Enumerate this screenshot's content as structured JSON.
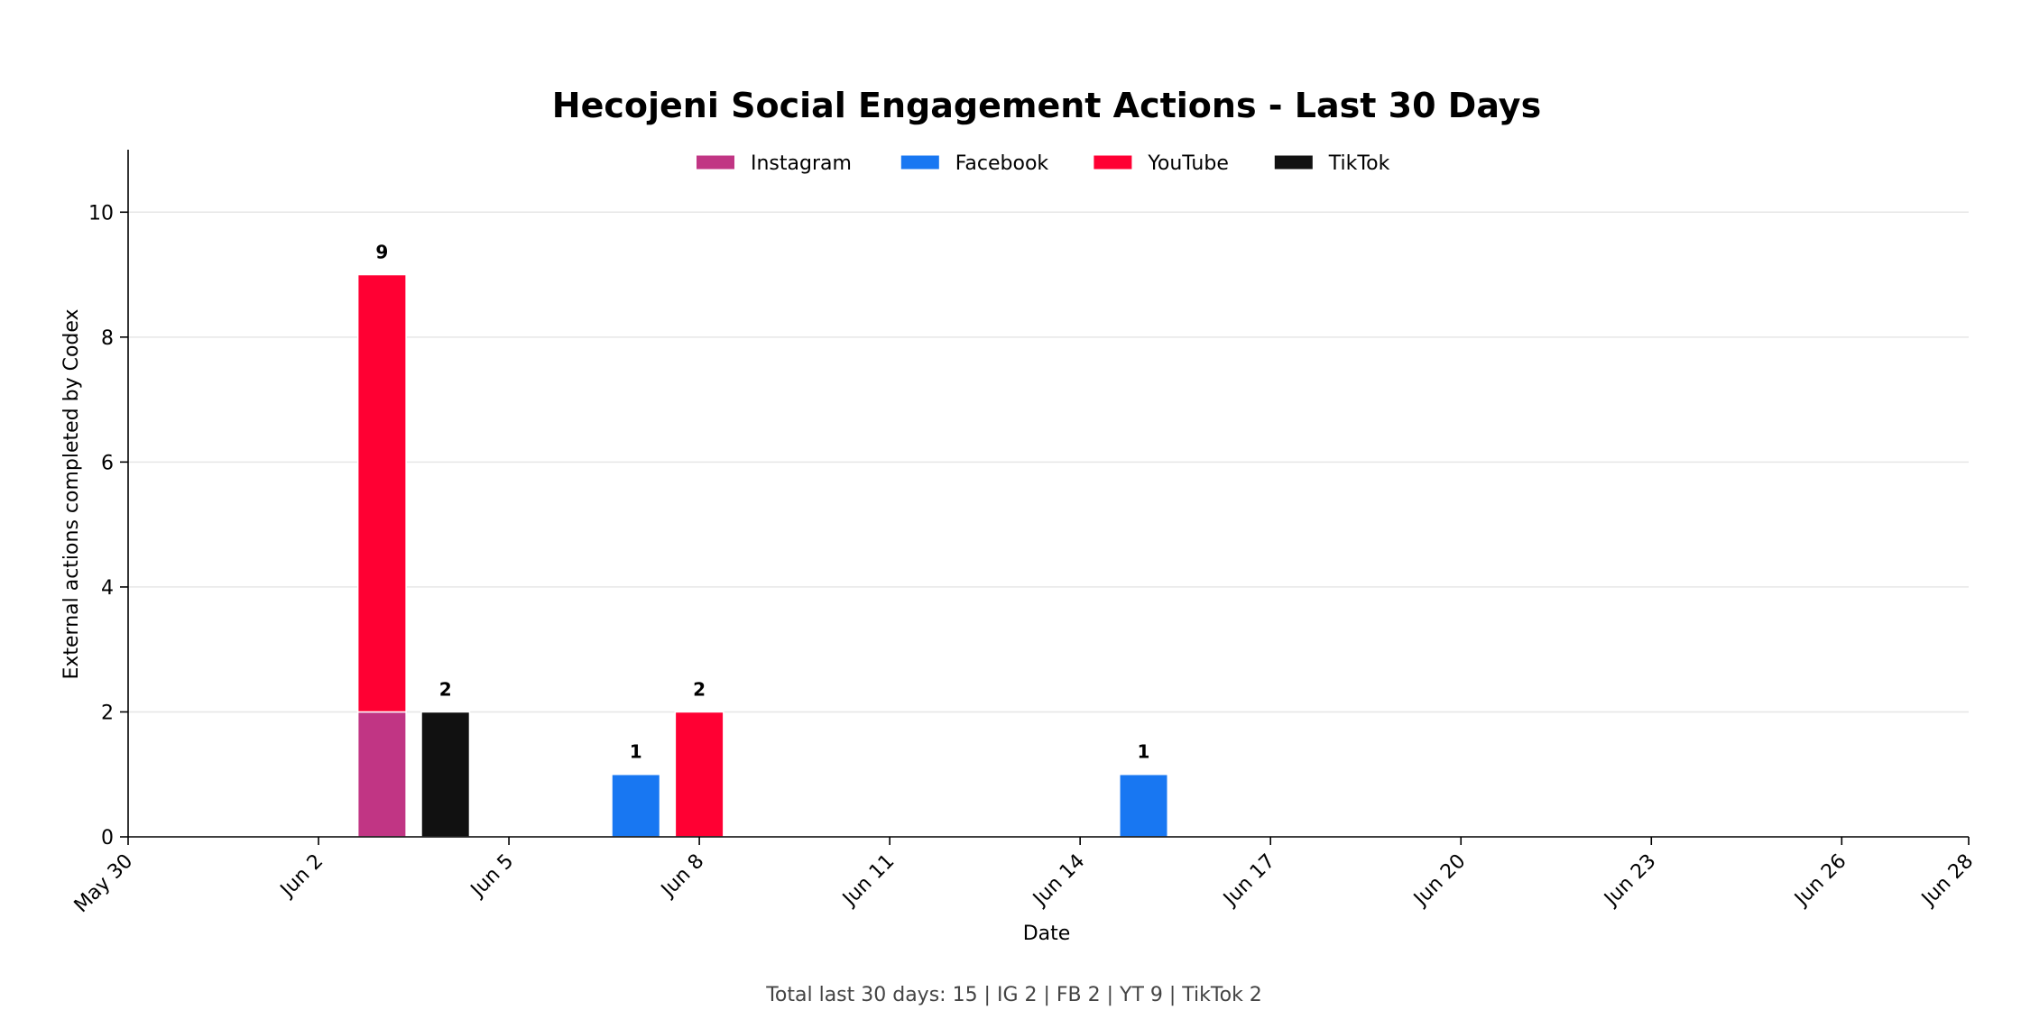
{
  "chart_data": {
    "type": "bar",
    "title": "Hecojeni Social Engagement Actions - Last 30 Days",
    "xlabel": "Date",
    "ylabel": "External actions completed by Codex",
    "footer": "Total last 30 days: 15 | IG 2 | FB 2 | YT 9 | TikTok 2",
    "xlim": [
      "2025-05-30",
      "2025-06-28"
    ],
    "ylim": [
      0,
      11
    ],
    "x_ticks": [
      {
        "date": "2025-05-30",
        "label": "May 30"
      },
      {
        "date": "2025-06-02",
        "label": "Jun 2"
      },
      {
        "date": "2025-06-05",
        "label": "Jun 5"
      },
      {
        "date": "2025-06-08",
        "label": "Jun 8"
      },
      {
        "date": "2025-06-11",
        "label": "Jun 11"
      },
      {
        "date": "2025-06-14",
        "label": "Jun 14"
      },
      {
        "date": "2025-06-17",
        "label": "Jun 17"
      },
      {
        "date": "2025-06-20",
        "label": "Jun 20"
      },
      {
        "date": "2025-06-23",
        "label": "Jun 23"
      },
      {
        "date": "2025-06-26",
        "label": "Jun 26"
      },
      {
        "date": "2025-06-28",
        "label": "Jun 28"
      }
    ],
    "y_ticks": [
      0,
      2,
      4,
      6,
      8,
      10
    ],
    "grid": "y",
    "legend": "top-center",
    "series": [
      {
        "name": "Instagram",
        "color": "#C13584",
        "points": [
          {
            "date": "2025-06-03",
            "value": 2
          }
        ]
      },
      {
        "name": "Facebook",
        "color": "#1877F2",
        "points": [
          {
            "date": "2025-06-07",
            "value": 1
          },
          {
            "date": "2025-06-15",
            "value": 1
          }
        ]
      },
      {
        "name": "YouTube",
        "color": "#FF0033",
        "points": [
          {
            "date": "2025-06-03",
            "value": 7
          },
          {
            "date": "2025-06-08",
            "value": 2
          }
        ]
      },
      {
        "name": "TikTok",
        "color": "#111111",
        "points": [
          {
            "date": "2025-06-04",
            "value": 2
          }
        ]
      }
    ],
    "bar_totals": [
      {
        "date": "2025-06-03",
        "label": "9"
      },
      {
        "date": "2025-06-04",
        "label": "2"
      },
      {
        "date": "2025-06-07",
        "label": "1"
      },
      {
        "date": "2025-06-08",
        "label": "2"
      },
      {
        "date": "2025-06-15",
        "label": "1"
      }
    ]
  }
}
